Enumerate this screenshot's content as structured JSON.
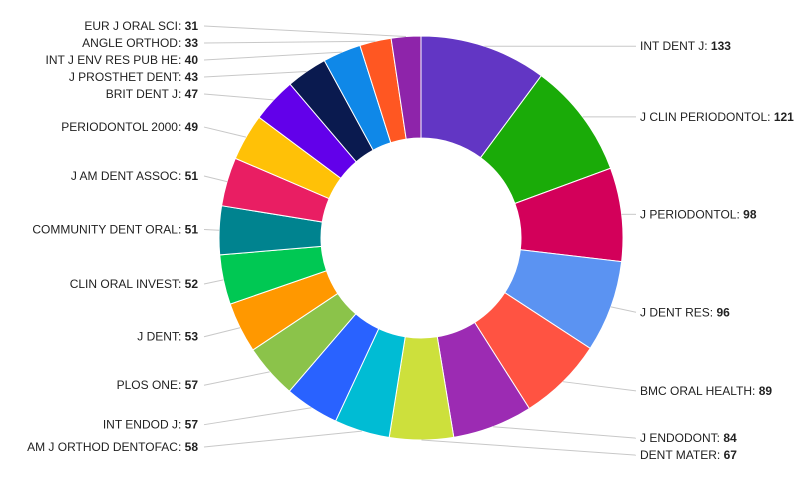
{
  "chart_data": {
    "type": "pie",
    "donut": true,
    "legend": "none",
    "slices": [
      {
        "label": "INT DENT J",
        "value": 133,
        "color": "#6236c4"
      },
      {
        "label": "J CLIN PERIODONTOL",
        "value": 121,
        "color": "#1aab08"
      },
      {
        "label": "J PERIODONTOL",
        "value": 98,
        "color": "#d3005a"
      },
      {
        "label": "J DENT RES",
        "value": 96,
        "color": "#5b93f2"
      },
      {
        "label": "BMC ORAL HEALTH",
        "value": 89,
        "color": "#ff5342"
      },
      {
        "label": "J ENDODONT",
        "value": 84,
        "color": "#9c2bb3"
      },
      {
        "label": "DENT MATER",
        "value": 67,
        "color": "#cde03c"
      },
      {
        "label": "AM J ORTHOD DENTOFAC",
        "value": 58,
        "color": "#00bcd4"
      },
      {
        "label": "INT ENDOD J",
        "value": 57,
        "color": "#2962ff"
      },
      {
        "label": "PLOS ONE",
        "value": 57,
        "color": "#8bc34a"
      },
      {
        "label": "J DENT",
        "value": 53,
        "color": "#ff9800"
      },
      {
        "label": "CLIN ORAL INVEST",
        "value": 52,
        "color": "#00c853"
      },
      {
        "label": "COMMUNITY DENT ORAL",
        "value": 51,
        "color": "#00838f"
      },
      {
        "label": "J AM DENT ASSOC",
        "value": 51,
        "color": "#e91e63"
      },
      {
        "label": "PERIODONTOL 2000",
        "value": 49,
        "color": "#ffc107"
      },
      {
        "label": "BRIT DENT J",
        "value": 47,
        "color": "#6200ea"
      },
      {
        "label": "J PROSTHET DENT",
        "value": 43,
        "color": "#0a1a4f"
      },
      {
        "label": "INT J ENV RES PUB HE",
        "value": 40,
        "color": "#0f88e8"
      },
      {
        "label": "ANGLE ORTHOD",
        "value": 33,
        "color": "#ff5722"
      },
      {
        "label": "EUR J ORAL SCI",
        "value": 31,
        "color": "#8e24aa"
      }
    ]
  }
}
